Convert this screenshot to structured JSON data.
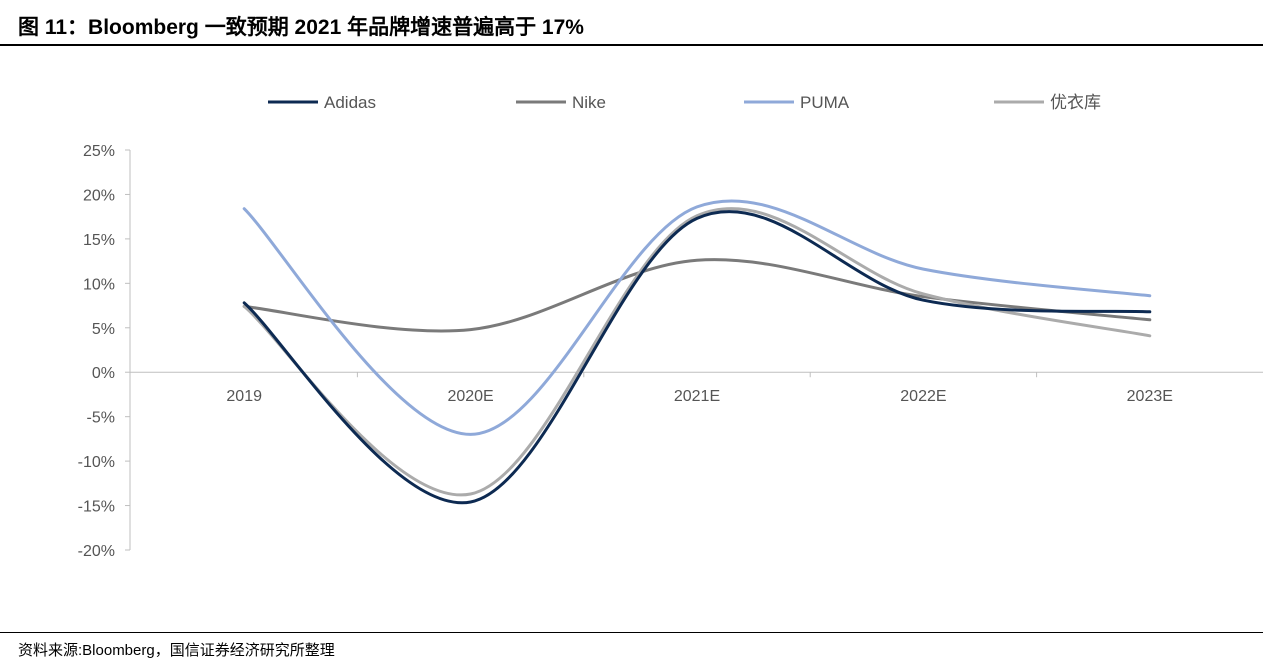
{
  "figure": {
    "title": "图 11：Bloomberg 一致预期 2021 年品牌增速普遍高于 17%",
    "source": "资料来源:Bloomberg，国信证券经济研究所整理"
  },
  "chart_data": {
    "type": "line",
    "title": "",
    "xlabel": "",
    "ylabel": "",
    "categories": [
      "2019",
      "2020E",
      "2021E",
      "2022E",
      "2023E"
    ],
    "ylim": [
      -20,
      25
    ],
    "yticks": [
      -20,
      -15,
      -10,
      -5,
      0,
      5,
      10,
      15,
      20,
      25
    ],
    "ytick_labels": [
      "-20%",
      "-15%",
      "-10%",
      "-5%",
      "0%",
      "5%",
      "10%",
      "15%",
      "20%",
      "25%"
    ],
    "grid": false,
    "smooth": true,
    "legend_position": "top",
    "series": [
      {
        "name": "Adidas",
        "values": [
          7.8,
          -14.6,
          17.3,
          8.1,
          6.8
        ],
        "color": "#0d2a52"
      },
      {
        "name": "Nike",
        "values": [
          7.4,
          4.8,
          12.6,
          8.5,
          5.9
        ],
        "color": "#7a7a7a"
      },
      {
        "name": "PUMA",
        "values": [
          18.4,
          -7.0,
          18.6,
          11.6,
          8.6
        ],
        "color": "#8fa9d9"
      },
      {
        "name": "优衣库",
        "values": [
          7.4,
          -13.7,
          17.6,
          8.8,
          4.1
        ],
        "color": "#ababab"
      }
    ]
  }
}
